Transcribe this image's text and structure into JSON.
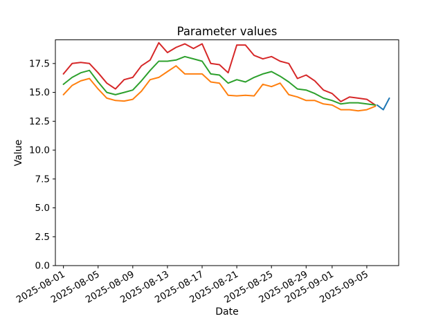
{
  "figure": {
    "background": "#ffffff",
    "text_color": "#000000"
  },
  "chart_data": {
    "type": "line",
    "title": "Parameter values",
    "xlabel": "Date",
    "ylabel": "Value",
    "grid": false,
    "legend": "none",
    "x_start_date": "2025-08-01",
    "x_unit": "days since 2025-08-01",
    "xlim_days": [
      -0.93,
      38.68
    ],
    "ylim": [
      0,
      19.55
    ],
    "yticks": [
      {
        "value": 0.0,
        "label": "0.0"
      },
      {
        "value": 2.5,
        "label": "2.5"
      },
      {
        "value": 5.0,
        "label": "5.0"
      },
      {
        "value": 7.5,
        "label": "7.5"
      },
      {
        "value": 10.0,
        "label": "10.0"
      },
      {
        "value": 12.5,
        "label": "12.5"
      },
      {
        "value": 15.0,
        "label": "15.0"
      },
      {
        "value": 17.5,
        "label": "17.5"
      }
    ],
    "xticks": [
      {
        "day": 0,
        "label": "2025-08-01"
      },
      {
        "day": 4,
        "label": "2025-08-05"
      },
      {
        "day": 8,
        "label": "2025-08-09"
      },
      {
        "day": 12,
        "label": "2025-08-13"
      },
      {
        "day": 16,
        "label": "2025-08-17"
      },
      {
        "day": 20,
        "label": "2025-08-21"
      },
      {
        "day": 24,
        "label": "2025-08-25"
      },
      {
        "day": 28,
        "label": "2025-08-29"
      },
      {
        "day": 31,
        "label": "2025-09-01"
      },
      {
        "day": 35,
        "label": "2025-09-05"
      }
    ],
    "series": [
      {
        "name": "red",
        "color": "#d62728",
        "x_days": [
          0,
          1,
          2,
          3,
          4,
          5,
          6,
          7,
          8,
          9,
          10,
          11,
          12,
          13,
          14,
          15,
          16,
          17,
          18,
          19,
          20,
          21,
          22,
          23,
          24,
          25,
          26,
          27,
          28,
          29,
          30,
          31,
          32,
          33,
          34,
          35,
          36
        ],
        "values": [
          16.6,
          17.5,
          17.6,
          17.5,
          16.7,
          15.8,
          15.3,
          16.1,
          16.3,
          17.3,
          17.8,
          19.3,
          18.45,
          18.9,
          19.2,
          18.8,
          19.2,
          17.5,
          17.4,
          16.7,
          19.1,
          19.1,
          18.2,
          17.9,
          18.1,
          17.7,
          17.5,
          16.2,
          16.5,
          16.0,
          15.2,
          14.9,
          14.2,
          14.6,
          14.5,
          14.4,
          13.9
        ]
      },
      {
        "name": "green",
        "color": "#2ca02c",
        "x_days": [
          0,
          1,
          2,
          3,
          4,
          5,
          6,
          7,
          8,
          9,
          10,
          11,
          12,
          13,
          14,
          15,
          16,
          17,
          18,
          19,
          20,
          21,
          22,
          23,
          24,
          25,
          26,
          27,
          28,
          29,
          30,
          31,
          32,
          33,
          34,
          35,
          36
        ],
        "values": [
          15.7,
          16.3,
          16.7,
          16.9,
          15.9,
          15.0,
          14.8,
          15.0,
          15.2,
          16.0,
          16.9,
          17.7,
          17.7,
          17.8,
          18.1,
          17.9,
          17.7,
          16.6,
          16.5,
          15.8,
          16.1,
          15.9,
          16.3,
          16.6,
          16.8,
          16.4,
          15.9,
          15.3,
          15.2,
          14.9,
          14.5,
          14.3,
          14.0,
          14.1,
          14.1,
          14.0,
          13.9
        ]
      },
      {
        "name": "orange",
        "color": "#ff7f0e",
        "x_days": [
          0,
          1,
          2,
          3,
          4,
          5,
          6,
          7,
          8,
          9,
          10,
          11,
          12,
          13,
          14,
          15,
          16,
          17,
          18,
          19,
          20,
          21,
          22,
          23,
          24,
          25,
          26,
          27,
          28,
          29,
          30,
          31,
          32,
          33,
          34,
          35,
          36
        ],
        "values": [
          14.8,
          15.6,
          16.0,
          16.2,
          15.3,
          14.5,
          14.3,
          14.25,
          14.4,
          15.1,
          16.1,
          16.3,
          16.8,
          17.3,
          16.6,
          16.6,
          16.6,
          15.9,
          15.8,
          14.75,
          14.7,
          14.75,
          14.7,
          15.7,
          15.5,
          15.8,
          14.8,
          14.6,
          14.3,
          14.3,
          14.0,
          13.9,
          13.5,
          13.5,
          13.4,
          13.5,
          13.8
        ]
      },
      {
        "name": "blue",
        "color": "#1f77b4",
        "x_days": [
          36.2,
          36.9,
          37.6
        ],
        "values": [
          13.9,
          13.5,
          14.5
        ]
      }
    ]
  }
}
